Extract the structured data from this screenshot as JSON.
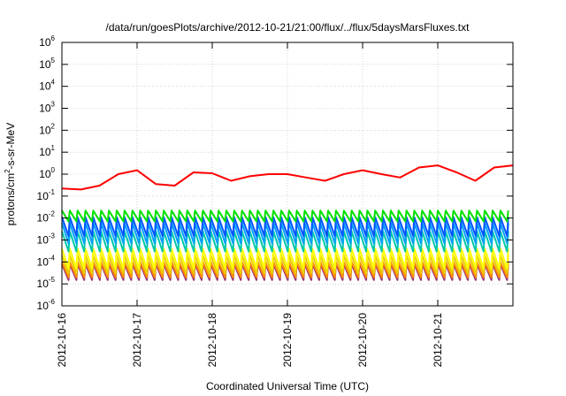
{
  "chart_data": {
    "type": "line",
    "title": "/data/run/goesPlots/archive/2012-10-21/21:00/flux/../flux/5daysMarsFluxes.txt",
    "xlabel": "Coordinated Universal Time (UTC)",
    "ylabel": {
      "base": "protons/cm",
      "sup": "2",
      "rest": "-s-sr-MeV"
    },
    "y_scale": "log",
    "ylim": [
      1e-06,
      1000000.0
    ],
    "y_ticks": [
      {
        "value": 1e-06,
        "base": "10",
        "exp": "-6"
      },
      {
        "value": 1e-05,
        "base": "10",
        "exp": "-5"
      },
      {
        "value": 0.0001,
        "base": "10",
        "exp": "-4"
      },
      {
        "value": 0.001,
        "base": "10",
        "exp": "-3"
      },
      {
        "value": 0.01,
        "base": "10",
        "exp": "-2"
      },
      {
        "value": 0.1,
        "base": "10",
        "exp": "-1"
      },
      {
        "value": 1,
        "base": "10",
        "exp": "0"
      },
      {
        "value": 10,
        "base": "10",
        "exp": "1"
      },
      {
        "value": 100,
        "base": "10",
        "exp": "2"
      },
      {
        "value": 1000,
        "base": "10",
        "exp": "3"
      },
      {
        "value": 10000,
        "base": "10",
        "exp": "4"
      },
      {
        "value": 100000,
        "base": "10",
        "exp": "5"
      },
      {
        "value": 1000000,
        "base": "10",
        "exp": "6"
      }
    ],
    "xlim": [
      "2012-10-16",
      "2012-10-22"
    ],
    "x_ticks": [
      "2012-10-16",
      "2012-10-17",
      "2012-10-18",
      "2012-10-19",
      "2012-10-20",
      "2012-10-21"
    ],
    "grid": true,
    "series": [
      {
        "color": "#ff0000",
        "sawtooth": false,
        "x": [
          "2012-10-16",
          "2012-10-16T06:00",
          "2012-10-16T12:00",
          "2012-10-16T18:00",
          "2012-10-17",
          "2012-10-17T06:00",
          "2012-10-17T12:00",
          "2012-10-17T18:00",
          "2012-10-18",
          "2012-10-18T06:00",
          "2012-10-18T12:00",
          "2012-10-18T18:00",
          "2012-10-19",
          "2012-10-19T06:00",
          "2012-10-19T12:00",
          "2012-10-19T18:00",
          "2012-10-20",
          "2012-10-20T06:00",
          "2012-10-20T12:00",
          "2012-10-20T18:00",
          "2012-10-21",
          "2012-10-21T06:00",
          "2012-10-21T12:00",
          "2012-10-21T18:00",
          "2012-10-22"
        ],
        "values": [
          0.22,
          0.2,
          0.3,
          1.0,
          1.5,
          0.35,
          0.3,
          1.2,
          1.1,
          0.5,
          0.8,
          1.0,
          1.0,
          0.7,
          0.5,
          1.0,
          1.5,
          1.0,
          0.7,
          2.0,
          2.5,
          1.2,
          0.5,
          2.0,
          2.5
        ]
      },
      {
        "color": "#00e000",
        "sawtooth": true,
        "period_hours": 2.5,
        "peak": 0.022,
        "trough": 0.007
      },
      {
        "color": "#0055ff",
        "sawtooth": true,
        "period_hours": 2.5,
        "peak": 0.011,
        "trough": 0.0015
      },
      {
        "color": "#00a0ff",
        "sawtooth": true,
        "period_hours": 2.5,
        "peak": 0.006,
        "trough": 0.0007
      },
      {
        "color": "#00c8a8",
        "sawtooth": true,
        "period_hours": 2.5,
        "peak": 0.0025,
        "trough": 0.0003
      },
      {
        "color": "#ffff00",
        "sawtooth": true,
        "period_hours": 2.5,
        "peak": 0.0004,
        "trough": 5e-05
      },
      {
        "color": "#e8d000",
        "sawtooth": true,
        "period_hours": 2.5,
        "peak": 0.0002,
        "trough": 3e-05
      },
      {
        "color": "#ff8c00",
        "sawtooth": true,
        "period_hours": 2.5,
        "peak": 0.0001,
        "trough": 2e-05
      },
      {
        "color": "#993377",
        "sawtooth": true,
        "period_hours": 2.5,
        "peak": 8e-05,
        "trough": 1.5e-05
      }
    ]
  }
}
